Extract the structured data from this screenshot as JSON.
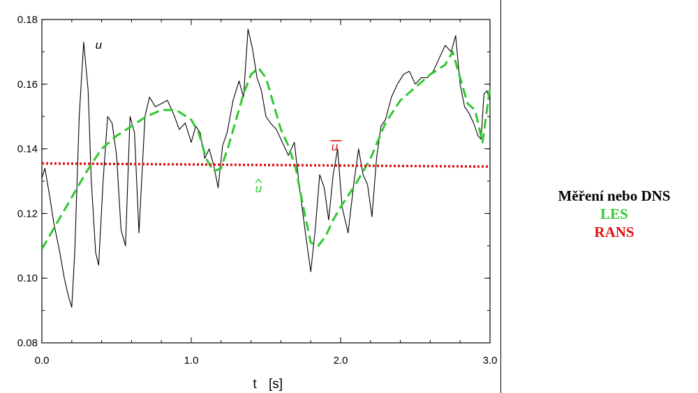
{
  "legend": {
    "items": [
      {
        "label": "Měření nebo DNS",
        "color": "#000000"
      },
      {
        "label": "LES",
        "color": "#2ec82e"
      },
      {
        "label": "RANS",
        "color": "#e01010"
      }
    ]
  },
  "chart_data": {
    "type": "line",
    "title": "",
    "xlabel": "t",
    "xunit": "[s]",
    "ylabel": "",
    "xlim": [
      0,
      3.0
    ],
    "ylim": [
      0.08,
      0.18
    ],
    "xticks": [
      "0.0",
      "1.0",
      "2.0",
      "3.0"
    ],
    "yticks": [
      "0.08",
      "0.10",
      "0.12",
      "0.14",
      "0.16",
      "0.18"
    ],
    "grid": false,
    "annotations": [
      {
        "text": "u",
        "x": 0.38,
        "y": 0.171,
        "color": "#000000"
      },
      {
        "text": "u",
        "x": 1.96,
        "y": 0.1395,
        "color": "#e01010",
        "overline": true
      },
      {
        "text": "u",
        "x": 1.45,
        "y": 0.1265,
        "color": "#2ec82e",
        "hat": true
      }
    ],
    "series": [
      {
        "name": "u",
        "style": "solid",
        "color": "#000000",
        "x": [
          0.0,
          0.02,
          0.05,
          0.08,
          0.12,
          0.15,
          0.18,
          0.2,
          0.22,
          0.25,
          0.28,
          0.31,
          0.33,
          0.36,
          0.38,
          0.41,
          0.44,
          0.47,
          0.5,
          0.53,
          0.56,
          0.59,
          0.62,
          0.65,
          0.69,
          0.72,
          0.76,
          0.8,
          0.84,
          0.88,
          0.92,
          0.96,
          1.0,
          1.03,
          1.06,
          1.09,
          1.12,
          1.15,
          1.18,
          1.21,
          1.24,
          1.28,
          1.32,
          1.35,
          1.38,
          1.41,
          1.44,
          1.47,
          1.5,
          1.53,
          1.57,
          1.61,
          1.65,
          1.69,
          1.73,
          1.77,
          1.8,
          1.83,
          1.86,
          1.89,
          1.92,
          1.95,
          1.98,
          2.01,
          2.05,
          2.09,
          2.12,
          2.15,
          2.18,
          2.21,
          2.24,
          2.27,
          2.3,
          2.34,
          2.38,
          2.42,
          2.46,
          2.5,
          2.54,
          2.58,
          2.62,
          2.66,
          2.7,
          2.74,
          2.77,
          2.8,
          2.83,
          2.86,
          2.89,
          2.92,
          2.94,
          2.96,
          2.98,
          3.0
        ],
        "values": [
          0.131,
          0.134,
          0.126,
          0.117,
          0.108,
          0.1,
          0.094,
          0.091,
          0.108,
          0.15,
          0.173,
          0.158,
          0.131,
          0.108,
          0.104,
          0.13,
          0.15,
          0.148,
          0.138,
          0.115,
          0.11,
          0.15,
          0.145,
          0.114,
          0.15,
          0.156,
          0.153,
          0.154,
          0.155,
          0.151,
          0.146,
          0.148,
          0.142,
          0.147,
          0.145,
          0.137,
          0.14,
          0.135,
          0.128,
          0.141,
          0.145,
          0.155,
          0.161,
          0.156,
          0.177,
          0.171,
          0.162,
          0.158,
          0.15,
          0.148,
          0.146,
          0.142,
          0.138,
          0.142,
          0.126,
          0.112,
          0.102,
          0.115,
          0.132,
          0.128,
          0.118,
          0.132,
          0.14,
          0.122,
          0.114,
          0.13,
          0.14,
          0.132,
          0.129,
          0.119,
          0.137,
          0.147,
          0.149,
          0.156,
          0.16,
          0.163,
          0.164,
          0.16,
          0.162,
          0.162,
          0.164,
          0.168,
          0.172,
          0.17,
          0.175,
          0.16,
          0.153,
          0.151,
          0.148,
          0.144,
          0.143,
          0.157,
          0.158,
          0.155
        ]
      },
      {
        "name": "û",
        "style": "dashed",
        "color": "#2ec82e",
        "x": [
          0.0,
          0.1,
          0.2,
          0.3,
          0.4,
          0.5,
          0.6,
          0.7,
          0.8,
          0.9,
          1.0,
          1.05,
          1.1,
          1.15,
          1.2,
          1.25,
          1.3,
          1.35,
          1.4,
          1.45,
          1.5,
          1.55,
          1.6,
          1.65,
          1.7,
          1.75,
          1.8,
          1.85,
          1.9,
          1.95,
          2.0,
          2.1,
          2.2,
          2.3,
          2.4,
          2.5,
          2.6,
          2.7,
          2.75,
          2.8,
          2.85,
          2.9,
          2.95,
          3.0
        ],
        "values": [
          0.109,
          0.117,
          0.125,
          0.133,
          0.14,
          0.144,
          0.147,
          0.15,
          0.152,
          0.152,
          0.149,
          0.145,
          0.137,
          0.133,
          0.134,
          0.141,
          0.149,
          0.157,
          0.163,
          0.165,
          0.162,
          0.154,
          0.146,
          0.141,
          0.134,
          0.122,
          0.111,
          0.11,
          0.113,
          0.118,
          0.122,
          0.129,
          0.137,
          0.148,
          0.155,
          0.159,
          0.163,
          0.166,
          0.17,
          0.162,
          0.154,
          0.152,
          0.142,
          0.159
        ]
      },
      {
        "name": "ū",
        "style": "dotted",
        "color": "#e01010",
        "x": [
          0.0,
          3.0
        ],
        "values": [
          0.1355,
          0.1345
        ]
      }
    ]
  }
}
